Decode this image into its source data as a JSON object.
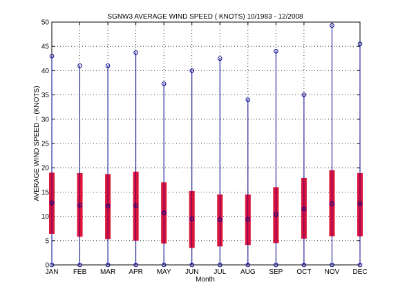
{
  "chart_data": {
    "type": "box",
    "title": "SGNW3  AVERAGE WIND SPEED ( KNOTS) 10/1983 - 12/2008",
    "xlabel": "Month",
    "ylabel": "AVERAGE WIND SPEED -- (KNOTS)",
    "ylim": [
      0,
      50
    ],
    "yticks": [
      0,
      5,
      10,
      15,
      20,
      25,
      30,
      35,
      40,
      45,
      50
    ],
    "grid": true,
    "categories": [
      "JAN",
      "FEB",
      "MAR",
      "APR",
      "MAY",
      "JUN",
      "JUL",
      "AUG",
      "SEP",
      "OCT",
      "NOV",
      "DEC"
    ],
    "min": [
      0,
      0,
      0,
      0,
      0,
      0,
      0,
      0,
      0,
      0,
      0,
      0
    ],
    "max": [
      43,
      41,
      41,
      43.7,
      37.3,
      40,
      42.5,
      34,
      44,
      35,
      49.3,
      45.5
    ],
    "box_low": [
      6.4,
      5.8,
      5.3,
      5,
      4.4,
      3.5,
      3.8,
      4.1,
      4.5,
      5.4,
      5.9,
      5.9
    ],
    "box_high": [
      19,
      18.9,
      18.7,
      19.2,
      17,
      15.2,
      14.5,
      14.5,
      16,
      17.9,
      19.5,
      18.9
    ],
    "mean": [
      12.8,
      12.3,
      12.1,
      12.2,
      10.7,
      9.5,
      9.3,
      9.4,
      10.4,
      11.5,
      12.6,
      12.6
    ],
    "colors": {
      "whisker": "#00008b",
      "box": "#dc143c",
      "marker": "#00008b"
    }
  }
}
